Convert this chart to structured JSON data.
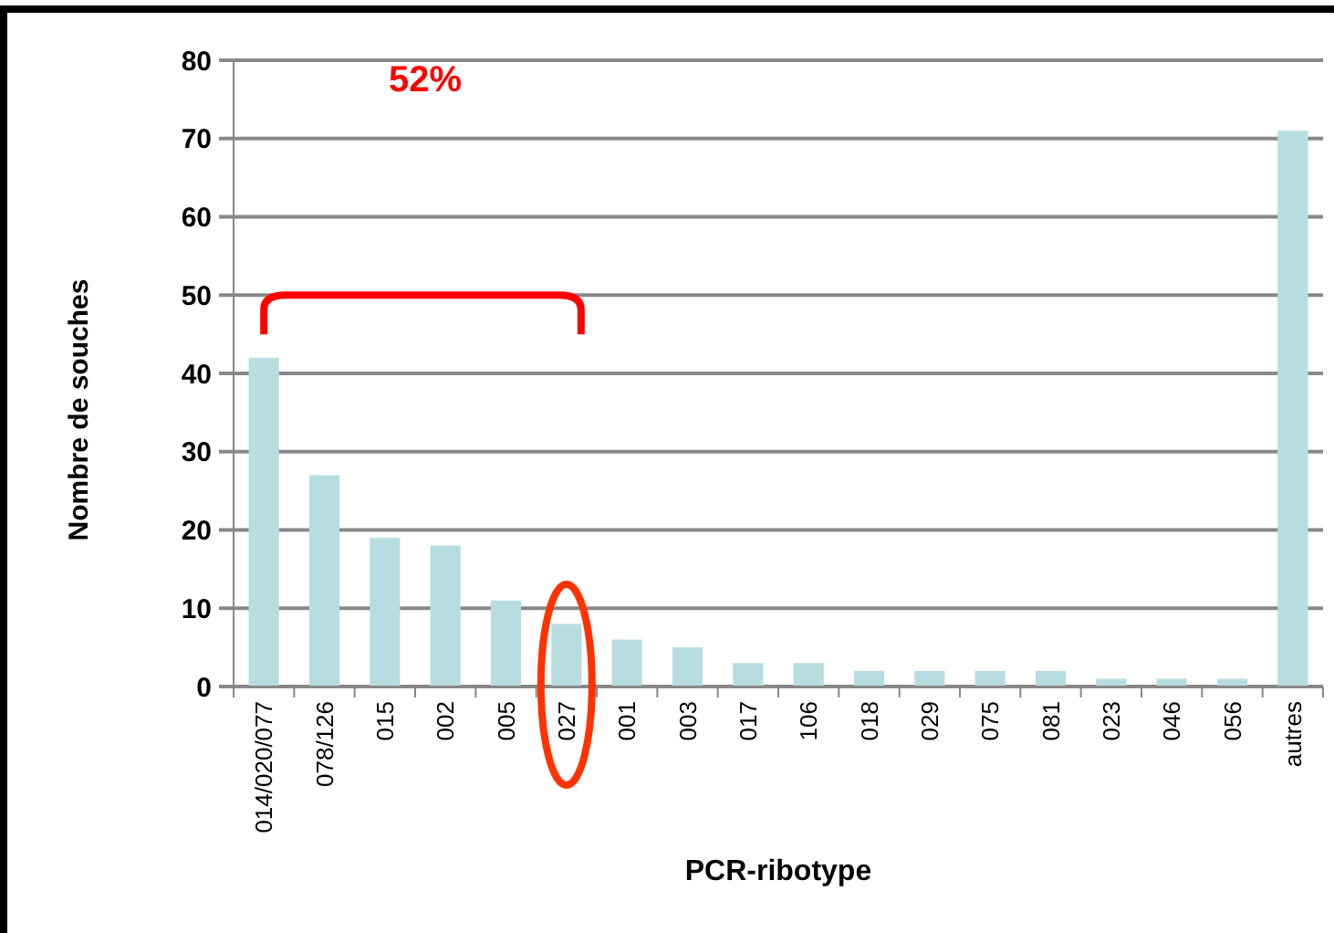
{
  "chart_data": {
    "type": "bar",
    "xlabel": "PCR-ribotype",
    "ylabel": "Nombre de souches",
    "categories": [
      "014/020/077",
      "078/126",
      "015",
      "002",
      "005",
      "027",
      "001",
      "003",
      "017",
      "106",
      "018",
      "029",
      "075",
      "081",
      "023",
      "046",
      "056",
      "autres"
    ],
    "values": [
      42,
      27,
      19,
      18,
      11,
      8,
      6,
      5,
      3,
      3,
      2,
      2,
      2,
      2,
      1,
      1,
      1,
      71
    ],
    "color": "#b8dde0",
    "ylim": [
      0,
      80
    ],
    "yticks": [
      0,
      10,
      20,
      30,
      40,
      50,
      60,
      70,
      80
    ],
    "grid": "y",
    "annotations": [
      "52%"
    ]
  }
}
